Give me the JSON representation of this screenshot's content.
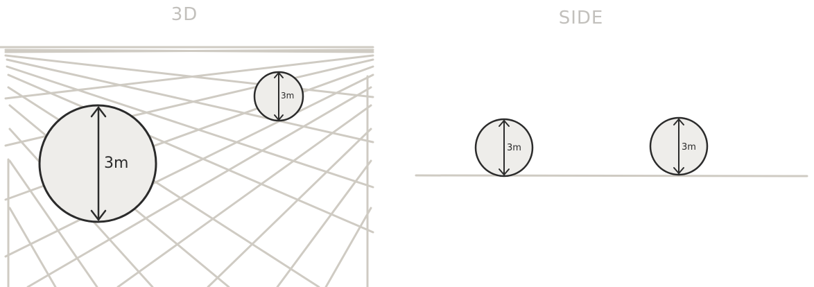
{
  "panels": {
    "left": {
      "title": "3D"
    },
    "right": {
      "title": "SIDE"
    }
  },
  "spheres": {
    "near_3d": {
      "label": "3m"
    },
    "far_3d": {
      "label": "3m"
    },
    "side_a": {
      "label": "3m"
    },
    "side_b": {
      "label": "3m"
    }
  },
  "colors": {
    "grid": "#cfcbc3",
    "ball_fill": "#eeedea",
    "outline": "#2b2b2b",
    "title": "#c2c0bc"
  }
}
